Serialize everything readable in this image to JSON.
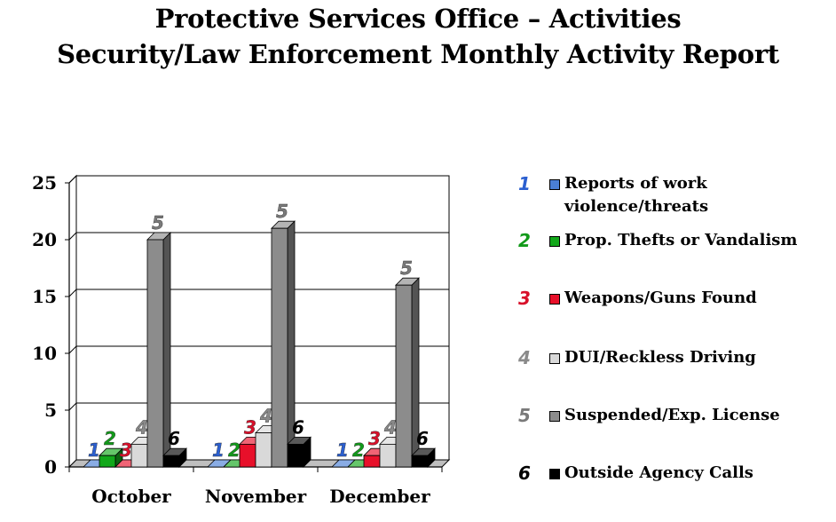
{
  "title": "Protective Services Office – Activities",
  "subtitle": "Security/Law Enforcement Monthly Activity Report",
  "chart_data": {
    "type": "bar",
    "categories": [
      "October",
      "November",
      "December"
    ],
    "series": [
      {
        "name": "Reports of work violence/threats",
        "label": "1",
        "color": "#4a7fd6",
        "values": [
          0,
          0,
          0
        ]
      },
      {
        "name": "Prop. Thefts or Vandalism",
        "label": "2",
        "color": "#12a81a",
        "values": [
          1,
          0,
          0
        ]
      },
      {
        "name": "Weapons/Guns Found",
        "label": "3",
        "color": "#e8102a",
        "values": [
          0,
          2,
          1
        ]
      },
      {
        "name": "DUI/Reckless Driving",
        "label": "4",
        "color": "#d9d9d9",
        "values": [
          2,
          3,
          2
        ]
      },
      {
        "name": "Suspended/Exp. License",
        "label": "5",
        "color": "#8c8c8c",
        "values": [
          20,
          21,
          16
        ]
      },
      {
        "name": "Outside Agency Calls",
        "label": "6",
        "color": "#000000",
        "values": [
          1,
          2,
          1
        ]
      }
    ],
    "ylim": [
      0,
      25
    ],
    "yticks": [
      0,
      5,
      10,
      15,
      20,
      25
    ],
    "grid": true,
    "legend_position": "right",
    "label_colors": [
      "#2b5fd0",
      "#129a1a",
      "#d8102a",
      "#8a8a8a",
      "#7a7a7a",
      "#000000"
    ]
  }
}
